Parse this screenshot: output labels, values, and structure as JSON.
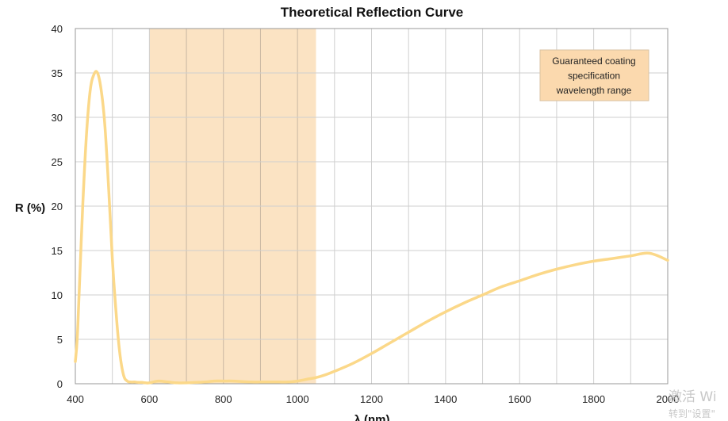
{
  "chart_data": {
    "type": "line",
    "title": "Theoretical Reflection Curve",
    "xlabel": "λ (nm)",
    "ylabel": "R (%)",
    "xlim": [
      400,
      2000
    ],
    "ylim": [
      0,
      40
    ],
    "x_ticks": [
      400,
      600,
      800,
      1000,
      1200,
      1400,
      1600,
      1800,
      2000
    ],
    "y_ticks": [
      0,
      5,
      10,
      15,
      20,
      25,
      30,
      35,
      40
    ],
    "x_grid_step": 100,
    "grid": true,
    "line_color": "#fbd889",
    "band": {
      "x_range": [
        600,
        1050
      ],
      "color": "#fbe3c3",
      "label_lines": [
        "Guaranteed coating",
        "specification",
        "wavelength range"
      ],
      "label_color": "#fbd9ae"
    },
    "series": [
      {
        "x": [
          400,
          405,
          410,
          420,
          430,
          440,
          450,
          460,
          470,
          480,
          490,
          500,
          510,
          520,
          530,
          540,
          550,
          560,
          570,
          580,
          590,
          600,
          625,
          650,
          675,
          700,
          725,
          750,
          775,
          800,
          825,
          850,
          875,
          900,
          925,
          950,
          975,
          1000,
          1025,
          1050,
          1075,
          1100,
          1150,
          1200,
          1250,
          1300,
          1350,
          1400,
          1450,
          1500,
          1550,
          1600,
          1650,
          1700,
          1750,
          1800,
          1850,
          1900,
          1950,
          2000
        ],
        "values": [
          2.5,
          5,
          10,
          20,
          28,
          33,
          34.8,
          35,
          33,
          29,
          22,
          14,
          8,
          3.5,
          1,
          0.3,
          0.2,
          0.2,
          0.15,
          0.15,
          0.1,
          0.1,
          0.3,
          0.2,
          0.1,
          0.1,
          0.15,
          0.2,
          0.3,
          0.3,
          0.3,
          0.25,
          0.2,
          0.2,
          0.2,
          0.2,
          0.2,
          0.3,
          0.5,
          0.7,
          1,
          1.4,
          2.3,
          3.4,
          4.6,
          5.8,
          7,
          8.1,
          9.1,
          10,
          10.9,
          11.6,
          12.3,
          12.9,
          13.4,
          13.8,
          14.1,
          14.4,
          14.7,
          13.9
        ]
      }
    ]
  },
  "watermark": {
    "line1": "激活 Wi",
    "line2": "转到\"设置\""
  }
}
